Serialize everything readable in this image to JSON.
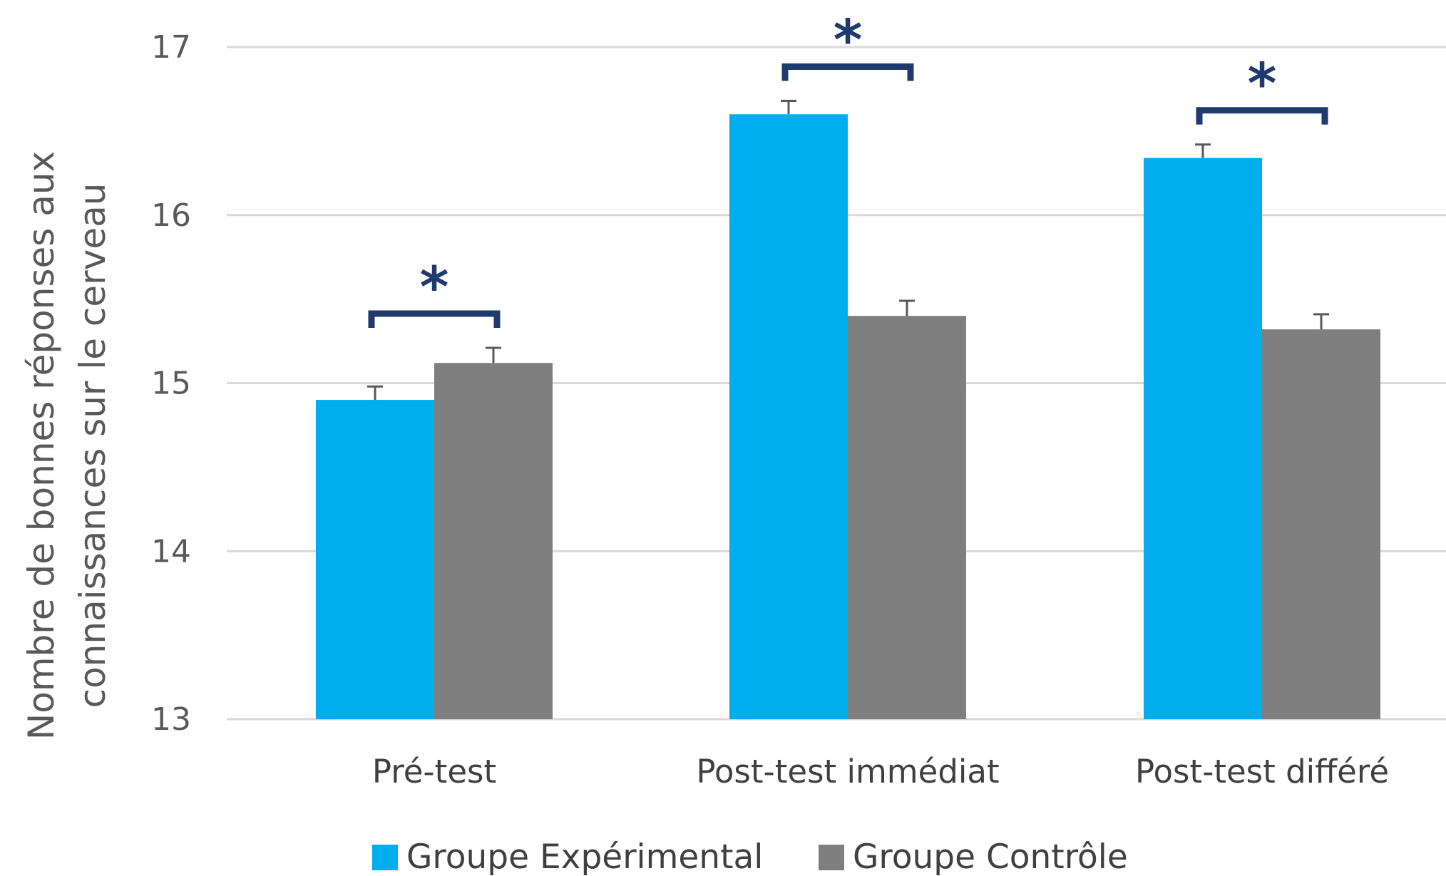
{
  "chart_data": {
    "type": "bar",
    "title": "",
    "xlabel": "",
    "ylabel_lines": [
      "Nombre de bonnes réponses aux",
      "connaissances sur le cerveau"
    ],
    "ylim": [
      13,
      17
    ],
    "yticks": [
      "13",
      "14",
      "15",
      "16",
      "17"
    ],
    "grid": true,
    "categories": [
      "Pré-test",
      "Post-test immédiat",
      "Post-test différé"
    ],
    "series": [
      {
        "name": "Groupe Expérimental",
        "color": "#00aeef",
        "values": [
          14.9,
          16.6,
          16.34
        ],
        "errors": [
          0.08,
          0.08,
          0.08
        ]
      },
      {
        "name": "Groupe Contrôle",
        "color": "#7f7f7f",
        "values": [
          15.12,
          15.4,
          15.32
        ],
        "errors": [
          0.09,
          0.09,
          0.09
        ]
      }
    ],
    "significance": [
      "*",
      "*",
      "*"
    ],
    "significance_color": "#1f3a6e",
    "legend_position": "bottom"
  }
}
